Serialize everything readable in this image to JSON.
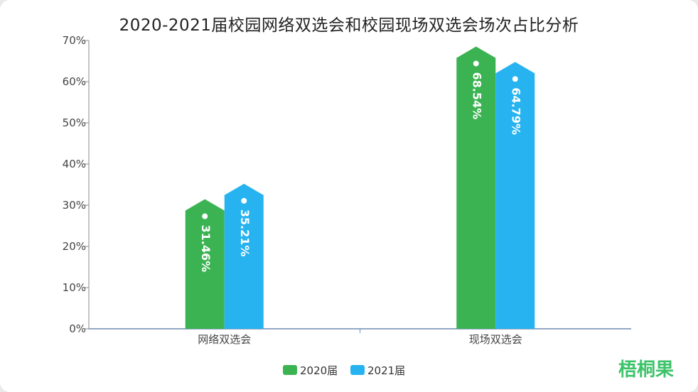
{
  "chart_data": {
    "type": "bar",
    "title": "2020-2021届校园网络双选会和校园现场双选会场次占比分析",
    "categories": [
      "网络双选会",
      "现场双选会"
    ],
    "series": [
      {
        "name": "2020届",
        "values": [
          31.46,
          68.54
        ],
        "labels": [
          "31.46%",
          "68.54%"
        ],
        "color": "#3cb353"
      },
      {
        "name": "2021届",
        "values": [
          35.21,
          64.79
        ],
        "labels": [
          "35.21%",
          "64.79%"
        ],
        "color": "#27b3f0"
      }
    ],
    "yticks": [
      "0%",
      "10%",
      "20%",
      "30%",
      "40%",
      "50%",
      "60%",
      "70%"
    ],
    "ylim": [
      0,
      70
    ],
    "legend_position": "bottom-center"
  },
  "brand": {
    "label": "梧桐果"
  }
}
